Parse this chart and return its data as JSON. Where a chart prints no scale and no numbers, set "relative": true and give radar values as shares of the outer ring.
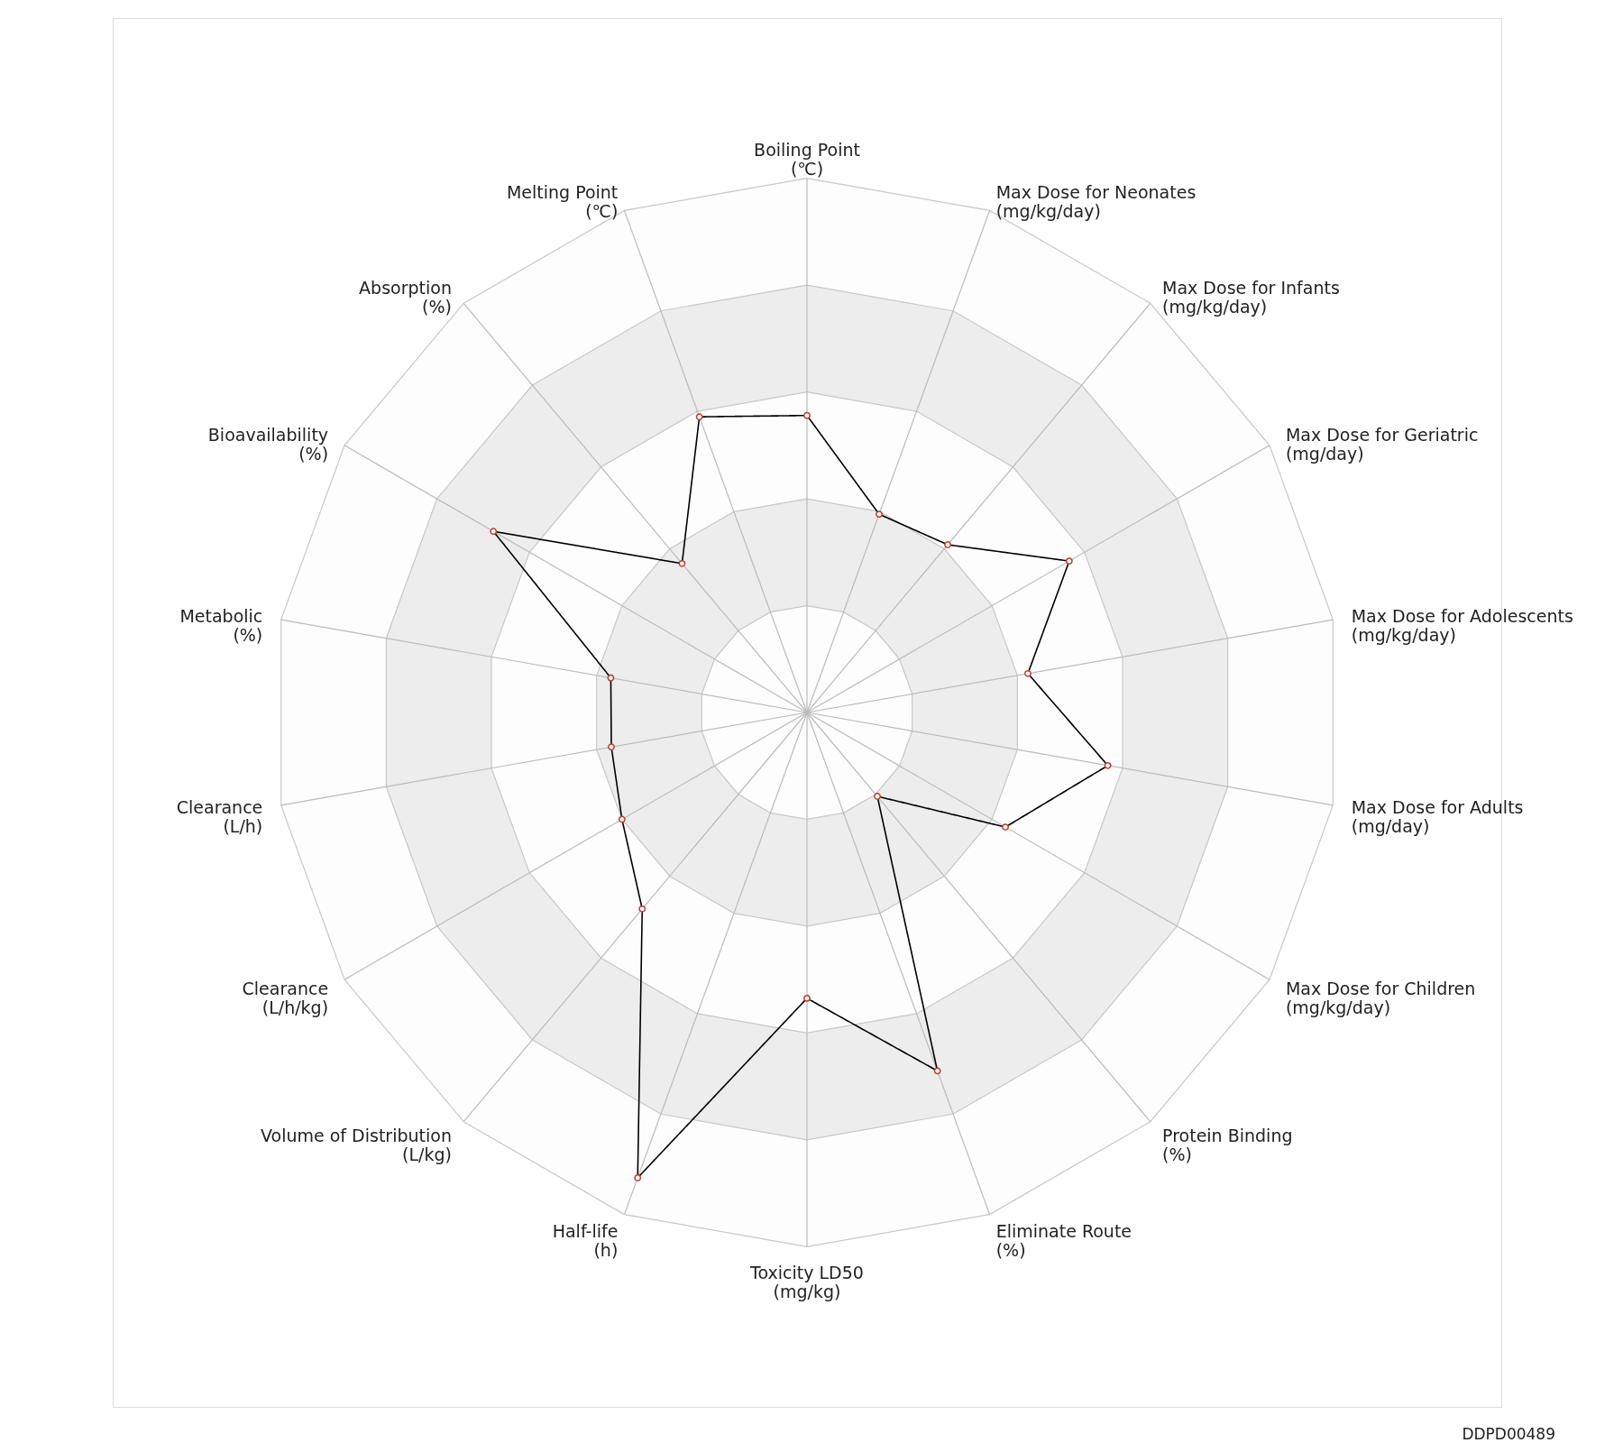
{
  "chart_data": {
    "type": "radar",
    "relative": true,
    "grid": true,
    "marker": "circle",
    "line_style": "solid",
    "categories": [
      "Boiling Point\n(℃)",
      "Max Dose for Neonates\n(mg/kg/day)",
      "Max Dose for Infants\n(mg/kg/day)",
      "Max Dose for Geriatric\n(mg/day)",
      "Max Dose for Adolescents\n(mg/kg/day)",
      "Max Dose for Adults\n(mg/day)",
      "Max Dose for Children\n(mg/kg/day)",
      "Protein Binding\n(%)",
      "Eliminate Route\n(%)",
      "Toxicity LD50\n(mg/kg)",
      "Half-life\n(h)",
      "Volume of Distribution\n(L/kg)",
      "Clearance\n(L/h/kg)",
      "Clearance\n(L/h)",
      "Metabolic\n(%)",
      "Bioavailability\n(%)",
      "Absorption\n(%)",
      "Melting Point\n(℃)"
    ],
    "series": [
      {
        "color": "#000000",
        "values": [
          0.556,
          0.395,
          0.41,
          0.567,
          0.42,
          0.572,
          0.429,
          0.205,
          0.714,
          0.535,
          0.927,
          0.48,
          0.4,
          0.372,
          0.373,
          0.678,
          0.364,
          0.589
        ]
      }
    ],
    "annotations": [
      "DDPD00489"
    ]
  }
}
